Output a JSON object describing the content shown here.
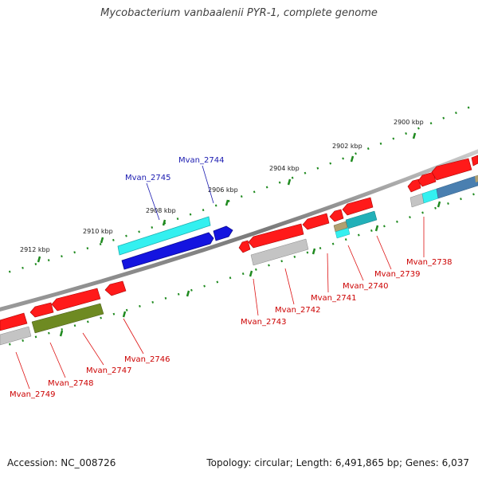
{
  "title": "Mycobacterium vanbaalenii PYR-1, complete genome",
  "footer": {
    "accession": "Accession: NC_008726",
    "summary": "Topology: circular; Length: 6,491,865 bp; Genes: 6,037"
  },
  "scale_labels": [
    "2900 kbp",
    "2902 kbp",
    "2904 kbp",
    "2906 kbp",
    "2908 kbp",
    "2910 kbp",
    "2912 kbp"
  ],
  "gene_labels": {
    "forward": [
      "Mvan_2744",
      "Mvan_2745"
    ],
    "reverse": [
      "Mvan_2738",
      "Mvan_2739",
      "Mvan_2740",
      "Mvan_2741",
      "Mvan_2742",
      "Mvan_2743",
      "Mvan_2746",
      "Mvan_2747",
      "Mvan_2748",
      "Mvan_2749"
    ]
  },
  "colors": {
    "backbone": "#8a8a8a",
    "reverse_gene": "#ff1a1a",
    "forward_gene": "#1a1ae6",
    "cyan_feature": "#33f0f0",
    "teal_feature": "#22b0b8",
    "olive_feature": "#6e8a22",
    "grey_feature": "#b4b4b4",
    "steelblue_feature": "#4a7fb0",
    "tick": "#1f8a1f",
    "reverse_label": "#cc0000",
    "forward_label": "#1a1ab0"
  }
}
